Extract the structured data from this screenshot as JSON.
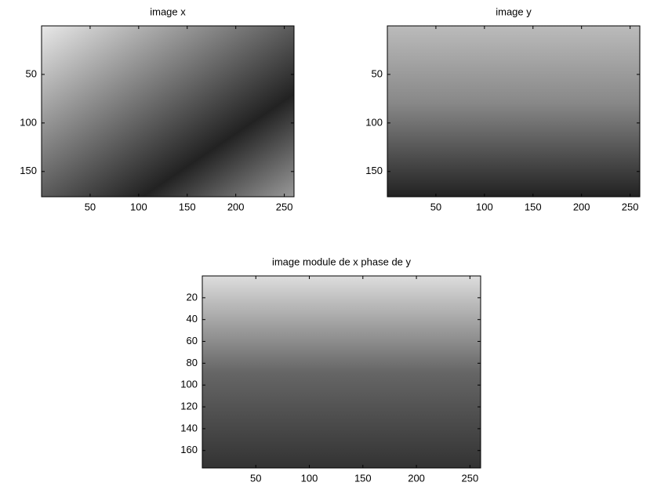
{
  "chart_data": [
    {
      "type": "image",
      "title": "image x",
      "xlim": [
        0,
        260
      ],
      "ylim": [
        0,
        176
      ],
      "xticks": [
        50,
        100,
        150,
        200,
        250
      ],
      "yticks": [
        50,
        100,
        150
      ],
      "y_reversed": true
    },
    {
      "type": "image",
      "title": "image y",
      "xlim": [
        0,
        260
      ],
      "ylim": [
        0,
        176
      ],
      "xticks": [
        50,
        100,
        150,
        200,
        250
      ],
      "yticks": [
        50,
        100,
        150
      ],
      "y_reversed": true
    },
    {
      "type": "image",
      "title": "image module de x phase de y",
      "xlim": [
        0,
        260
      ],
      "ylim": [
        0,
        176
      ],
      "xticks": [
        50,
        100,
        150,
        200,
        250
      ],
      "yticks": [
        20,
        40,
        60,
        80,
        100,
        120,
        140,
        160
      ],
      "y_reversed": true
    }
  ]
}
